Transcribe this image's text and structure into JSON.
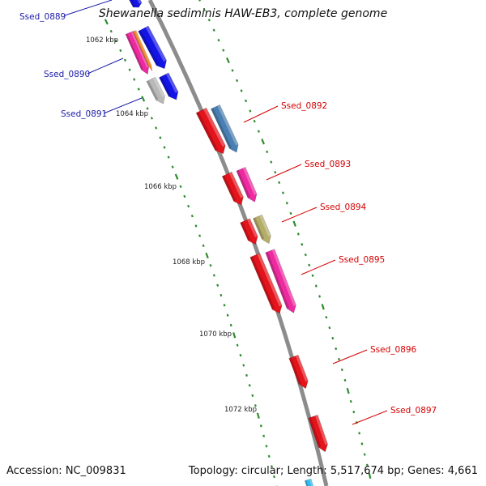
{
  "title": "Shewanella sediminis HAW-EB3, complete genome",
  "footer": {
    "accession": "Accession: NC_009831",
    "summary": "Topology: circular; Length: 5,517,674 bp; Genes: 4,661"
  },
  "colors": {
    "backbone": "#8c8c8c",
    "tick": "#2e8b2e",
    "left_label": "#1a1aa8",
    "right_label": "#d40000",
    "gene_red": "#e3141b",
    "gene_blue": "#1414e6",
    "gene_steelblue": "#4a7fb3",
    "gene_magenta": "#ee2aa0",
    "gene_khaki": "#b5ad6a",
    "gene_grey": "#b8b8b8",
    "gene_orange": "#f08a2c"
  },
  "kbp_labels": [
    "1062 kbp",
    "1064 kbp",
    "1066 kbp",
    "1068 kbp",
    "1070 kbp",
    "1072 kbp"
  ],
  "gene_labels": {
    "left": [
      "Ssed_0889",
      "Ssed_0890",
      "Ssed_0891"
    ],
    "right": [
      "Ssed_0892",
      "Ssed_0893",
      "Ssed_0894",
      "Ssed_0895",
      "Ssed_0896",
      "Ssed_0897"
    ]
  }
}
